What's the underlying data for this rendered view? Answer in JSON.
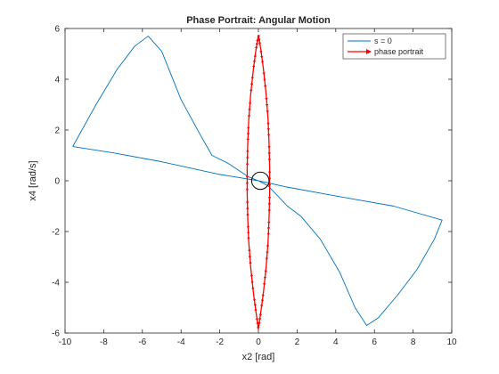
{
  "chart_data": {
    "type": "line",
    "title": "Phase Portrait: Angular Motion",
    "xlabel": "x2 [rad]",
    "ylabel": "x4 [rad/s]",
    "xlim": [
      -10,
      10
    ],
    "ylim": [
      -6,
      6
    ],
    "xticks": [
      -10,
      -8,
      -6,
      -4,
      -2,
      0,
      2,
      4,
      6,
      8,
      10
    ],
    "yticks": [
      -6,
      -4,
      -2,
      0,
      2,
      4,
      6
    ],
    "grid": false,
    "legend_position": "top-right",
    "series": [
      {
        "name": "s = 0",
        "color": "#0072BD",
        "style": "solid",
        "points": [
          [
            -9.6,
            1.35
          ],
          [
            -8.4,
            3.0
          ],
          [
            -7.3,
            4.4
          ],
          [
            -6.4,
            5.3
          ],
          [
            -5.7,
            5.7
          ],
          [
            -5.0,
            5.1
          ],
          [
            -4.0,
            3.2
          ],
          [
            -3.0,
            1.8
          ],
          [
            -2.4,
            1.0
          ],
          [
            -1.6,
            0.7
          ],
          [
            -1.0,
            0.4
          ],
          [
            -0.5,
            0.15
          ],
          [
            0.0,
            0.0
          ],
          [
            0.5,
            -0.2
          ],
          [
            1.0,
            -0.6
          ],
          [
            1.5,
            -1.0
          ],
          [
            2.2,
            -1.4
          ],
          [
            3.2,
            -2.3
          ],
          [
            4.2,
            -3.6
          ],
          [
            5.0,
            -5.0
          ],
          [
            5.6,
            -5.7
          ],
          [
            6.2,
            -5.4
          ],
          [
            7.2,
            -4.5
          ],
          [
            8.2,
            -3.5
          ],
          [
            9.1,
            -2.3
          ],
          [
            9.5,
            -1.55
          ],
          [
            7.0,
            -1.0
          ],
          [
            4.0,
            -0.6
          ],
          [
            1.5,
            -0.25
          ],
          [
            0.0,
            0.0
          ],
          [
            -2.0,
            0.25
          ],
          [
            -5.0,
            0.75
          ],
          [
            -7.5,
            1.1
          ],
          [
            -9.6,
            1.35
          ]
        ]
      },
      {
        "name": "phase portrait",
        "color": "#FF0000",
        "style": "solid-with-arrows",
        "points": [
          [
            0.0,
            5.75
          ],
          [
            0.12,
            5.2
          ],
          [
            0.26,
            4.4
          ],
          [
            0.4,
            3.4
          ],
          [
            0.5,
            2.4
          ],
          [
            0.55,
            1.5
          ],
          [
            0.58,
            0.5
          ],
          [
            0.58,
            -0.5
          ],
          [
            0.55,
            -1.5
          ],
          [
            0.5,
            -2.4
          ],
          [
            0.4,
            -3.4
          ],
          [
            0.26,
            -4.4
          ],
          [
            0.12,
            -5.2
          ],
          [
            0.0,
            -5.85
          ],
          [
            -0.12,
            -5.2
          ],
          [
            -0.26,
            -4.4
          ],
          [
            -0.4,
            -3.4
          ],
          [
            -0.5,
            -2.4
          ],
          [
            -0.55,
            -1.5
          ],
          [
            -0.58,
            -0.5
          ],
          [
            -0.58,
            0.5
          ],
          [
            -0.55,
            1.5
          ],
          [
            -0.5,
            2.4
          ],
          [
            -0.4,
            3.4
          ],
          [
            -0.26,
            4.4
          ],
          [
            -0.12,
            5.2
          ],
          [
            0.0,
            5.75
          ]
        ]
      }
    ],
    "annotations": [
      {
        "type": "circle",
        "center": [
          0.1,
          0.0
        ],
        "radius_x": 0.45,
        "color": "#000000"
      }
    ]
  }
}
